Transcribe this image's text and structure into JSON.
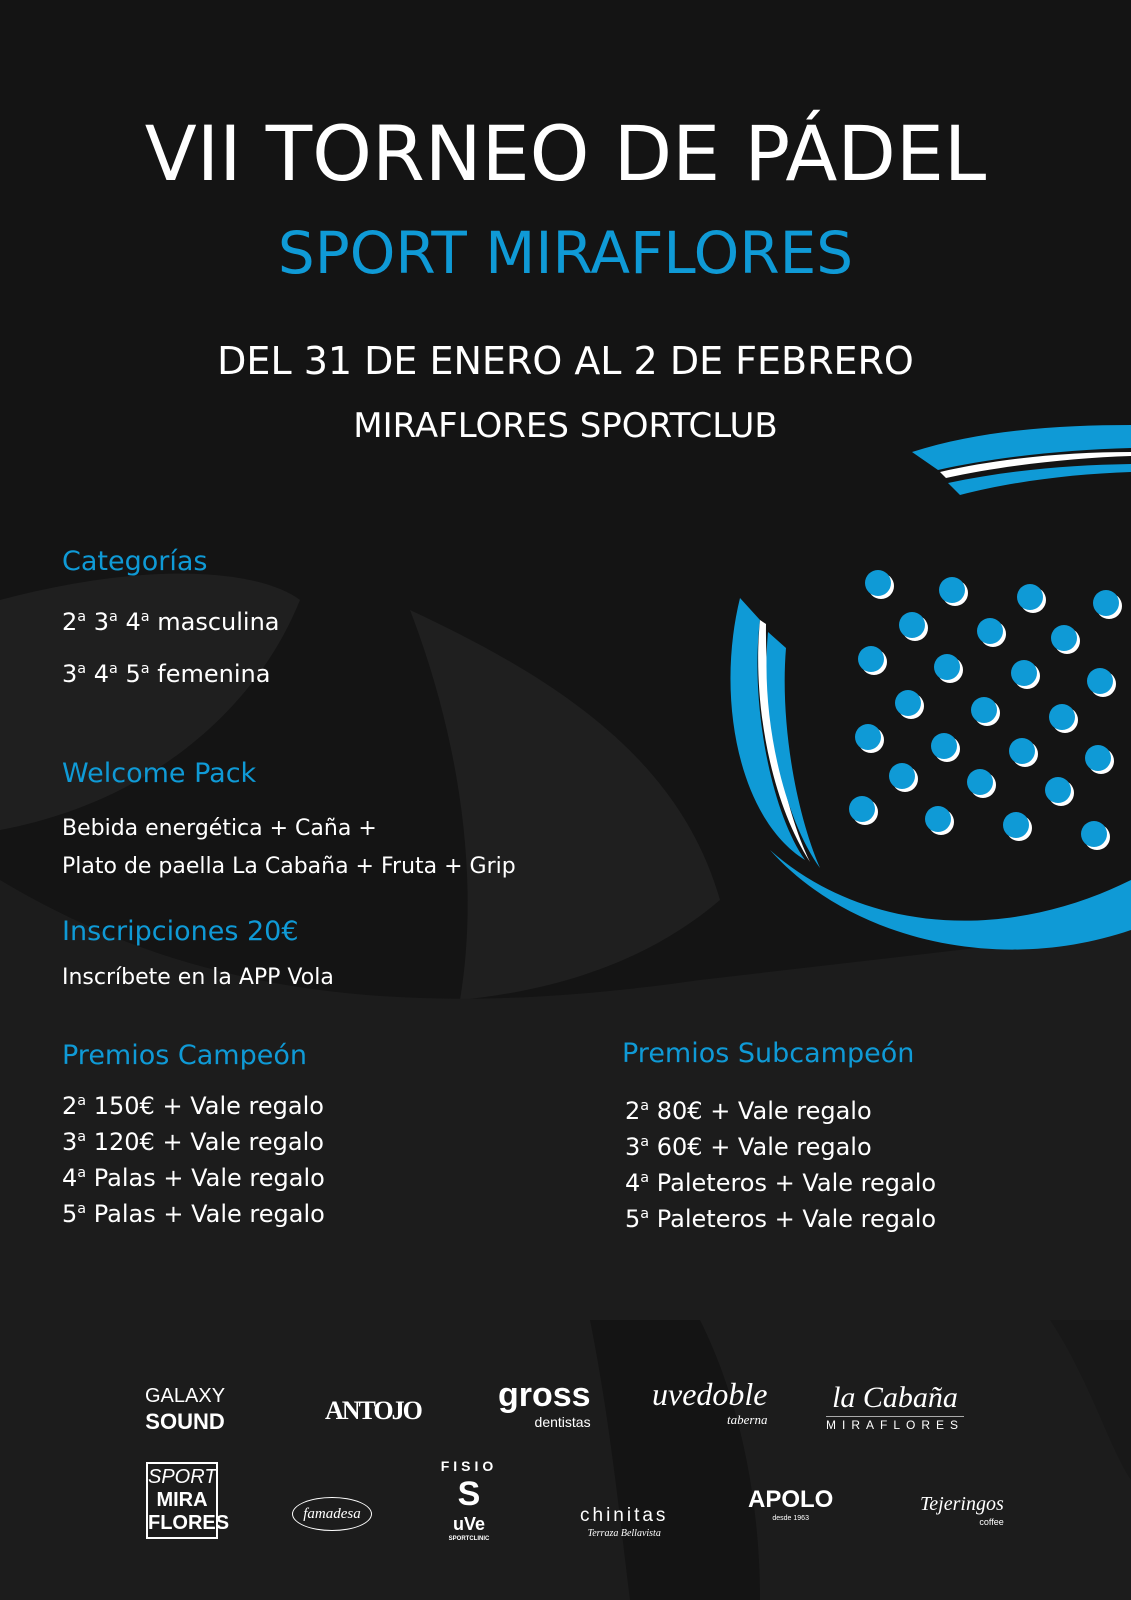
{
  "header": {
    "title": "VII TORNEO DE PÁDEL",
    "subtitle": "SPORT MIRAFLORES",
    "dates": "DEL 31 DE ENERO AL 2 DE FEBRERO",
    "venue": "MIRAFLORES SPORTCLUB"
  },
  "categories": {
    "heading": "Categorías",
    "lines": [
      {
        "levels": [
          "2",
          "3",
          "4"
        ],
        "sup": "a",
        "label": "masculina"
      },
      {
        "levels": [
          "3",
          "4",
          "5"
        ],
        "sup": "a",
        "label": "femenina"
      }
    ]
  },
  "welcome_pack": {
    "heading": "Welcome Pack",
    "line1": "Bebida energética + Caña +",
    "line2": "Plato de paella La Cabaña + Fruta + Grip"
  },
  "registration": {
    "heading": "Inscripciones 20€",
    "text": "Inscríbete en la APP Vola"
  },
  "prizes_champion": {
    "heading": "Premios Campeón",
    "items": [
      {
        "level": "2",
        "sup": "a",
        "prize": "150€ + Vale regalo"
      },
      {
        "level": "3",
        "sup": "a",
        "prize": "120€ + Vale regalo"
      },
      {
        "level": "4",
        "sup": "a",
        "prize": "Palas + Vale regalo"
      },
      {
        "level": "5",
        "sup": "a",
        "prize": "Palas + Vale regalo"
      }
    ]
  },
  "prizes_runner_up": {
    "heading": "Premios Subcampeón",
    "items": [
      {
        "level": "2",
        "sup": "a",
        "prize": "80€ + Vale regalo"
      },
      {
        "level": "3",
        "sup": "a",
        "prize": "60€ + Vale regalo"
      },
      {
        "level": "4",
        "sup": "a",
        "prize": "Paleteros + Vale regalo"
      },
      {
        "level": "5",
        "sup": "a",
        "prize": "Paleteros + Vale regalo"
      }
    ]
  },
  "sponsors": {
    "galaxy": [
      "GALAXY",
      "SOUND"
    ],
    "antojo": "ANTOJO",
    "gross": [
      "gross",
      "dentistas"
    ],
    "uvedoble": [
      "uvedoble",
      "taberna"
    ],
    "cabana": [
      "la Cabaña",
      "MIRAFLORES"
    ],
    "sport": [
      "SPORT",
      "MIRA",
      "FLORES"
    ],
    "famadesa": "famadesa",
    "fisio": [
      "FISIO",
      "S",
      "uVe",
      "SPORTCLINIC"
    ],
    "chinitas": [
      "chinitas",
      "Terraza Bellavista"
    ],
    "apolo": [
      "APOLO",
      "desde 1963"
    ],
    "tejeringos": [
      "Tejeringos",
      "coffee"
    ]
  },
  "colors": {
    "accent": "#0f9ad6",
    "background": "#141414",
    "swirl": "#1f1f1f"
  },
  "icons": {
    "paddle": "padel-racket-graphic"
  }
}
